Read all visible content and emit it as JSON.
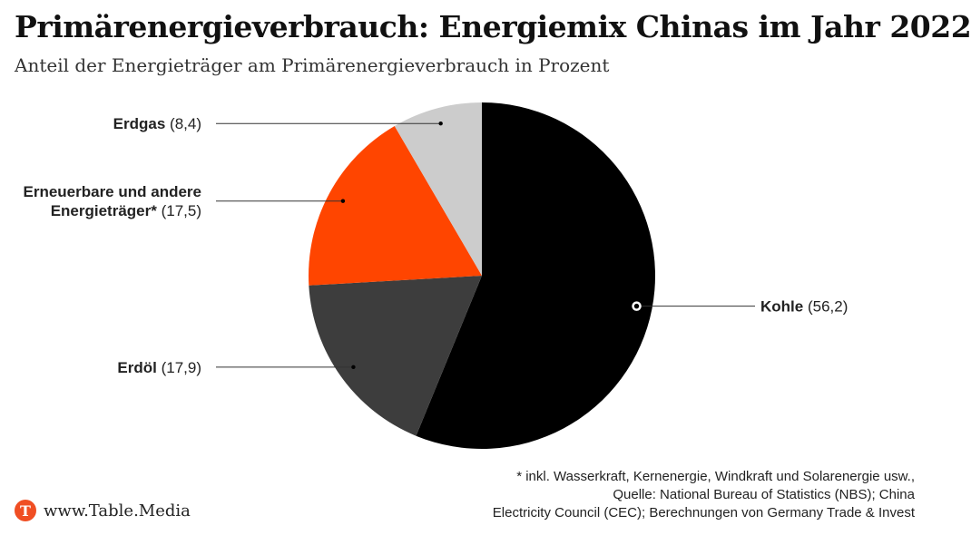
{
  "header": {
    "title": "Primärenergieverbrauch: Energiemix Chinas im Jahr 2022",
    "subtitle": "Anteil der Energieträger am Primärenergieverbrauch in Prozent"
  },
  "chart_data": {
    "type": "pie",
    "title": "Primärenergieverbrauch: Energiemix Chinas im Jahr 2022",
    "subtitle": "Anteil der Energieträger am Primärenergieverbrauch in Prozent",
    "unit": "Prozent",
    "slices": [
      {
        "label": "Kohle",
        "value": 56.2,
        "value_text": "(56,2)",
        "color": "#000000"
      },
      {
        "label": "Erdöl",
        "value": 17.9,
        "value_text": "(17,9)",
        "color": "#3d3d3d"
      },
      {
        "label": "Erneuerbare und andere Energieträger*",
        "value": 17.5,
        "value_text": "(17,5)",
        "color": "#ff4500"
      },
      {
        "label": "Erdgas",
        "value": 8.4,
        "value_text": "(8,4)",
        "color": "#cccccc"
      }
    ]
  },
  "footnote": {
    "lines": [
      "* inkl. Wasserkraft, Kernenergie, Windkraft und Solarenergie usw.,",
      "Quelle: National Bureau of Statistics (NBS); China",
      "Electricity Council (CEC); Berechnungen von Germany Trade & Invest"
    ]
  },
  "brand": {
    "icon": "T",
    "name": "www.Table.Media",
    "color": "#f04e23"
  }
}
